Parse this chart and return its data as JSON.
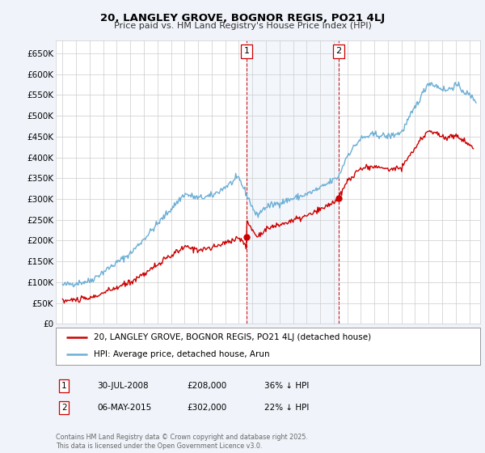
{
  "title": "20, LANGLEY GROVE, BOGNOR REGIS, PO21 4LJ",
  "subtitle": "Price paid vs. HM Land Registry's House Price Index (HPI)",
  "ylabel_ticks": [
    "£0",
    "£50K",
    "£100K",
    "£150K",
    "£200K",
    "£250K",
    "£300K",
    "£350K",
    "£400K",
    "£450K",
    "£500K",
    "£550K",
    "£600K",
    "£650K"
  ],
  "ytick_values": [
    0,
    50000,
    100000,
    150000,
    200000,
    250000,
    300000,
    350000,
    400000,
    450000,
    500000,
    550000,
    600000,
    650000
  ],
  "ylim": [
    0,
    680000
  ],
  "xlim_start": 1994.5,
  "xlim_end": 2025.8,
  "hpi_color": "#6baed6",
  "price_color": "#cc0000",
  "marker1_date": 2008.57,
  "marker1_price": 208000,
  "marker1_label": "1",
  "marker2_date": 2015.35,
  "marker2_price": 302000,
  "marker2_label": "2",
  "legend_line1": "20, LANGLEY GROVE, BOGNOR REGIS, PO21 4LJ (detached house)",
  "legend_line2": "HPI: Average price, detached house, Arun",
  "table_rows": [
    {
      "num": "1",
      "date": "30-JUL-2008",
      "price": "£208,000",
      "change": "36% ↓ HPI"
    },
    {
      "num": "2",
      "date": "06-MAY-2015",
      "price": "£302,000",
      "change": "22% ↓ HPI"
    }
  ],
  "footnote": "Contains HM Land Registry data © Crown copyright and database right 2025.\nThis data is licensed under the Open Government Licence v3.0.",
  "background_color": "#f0f4fa",
  "plot_bg_color": "#ffffff",
  "grid_color": "#cccccc"
}
